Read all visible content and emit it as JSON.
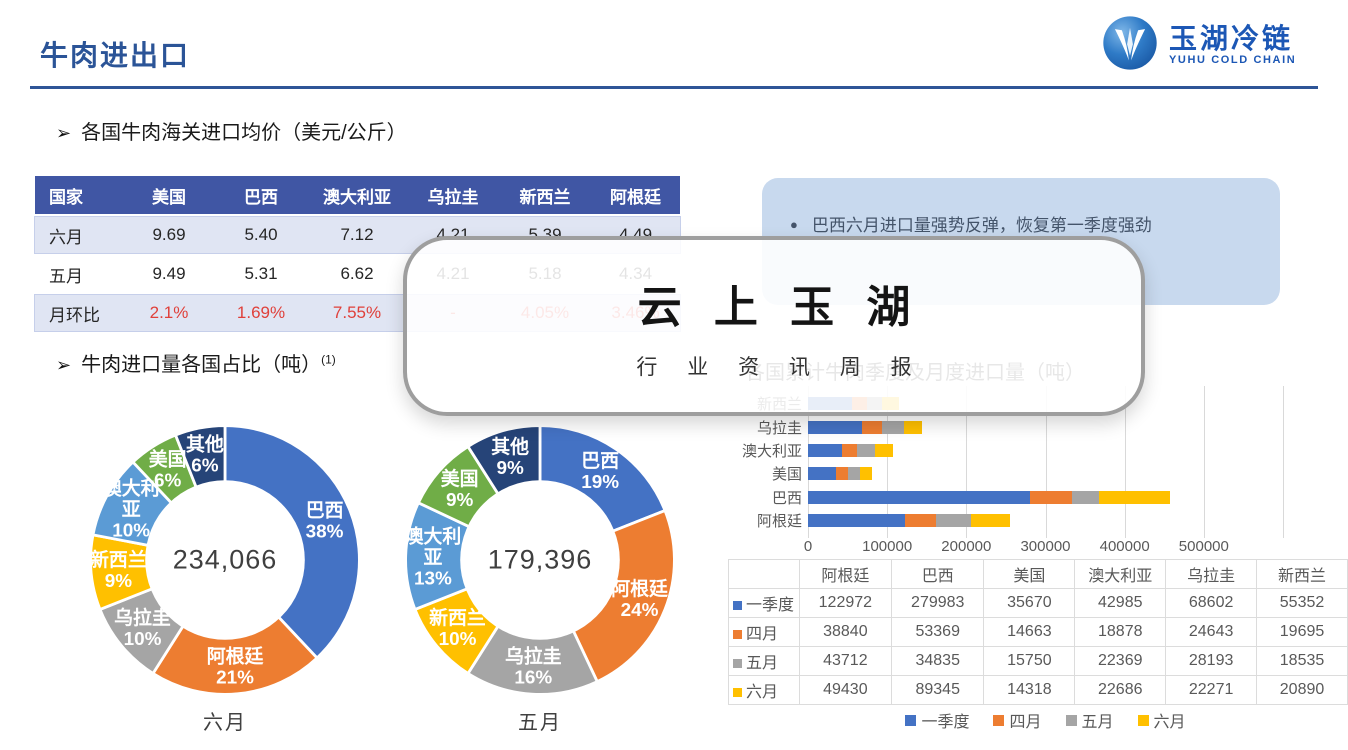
{
  "slide": {
    "title": "牛肉进出口",
    "logo": {
      "cn": "玉湖冷链",
      "en": "YUHU COLD CHAIN"
    },
    "section_price": "各国牛肉海关进口均价（美元/公斤）",
    "section_share": "牛肉进口量各国占比（吨）",
    "section_share_note": "(1)",
    "section_monthly": "各国累计牛肉季度及月度进口量（吨）",
    "callout": "巴西六月进口量强势反弹，恢复第一季度强劲",
    "watermark": {
      "line1": "云 上 玉 湖",
      "line2": "行 业 资 讯 周 报"
    }
  },
  "colors": {
    "accent_blue": "#2E5597",
    "table_header": "#4056A4",
    "band_row": "#E0E5F3",
    "negative_red": "#E0403A",
    "callout_bg": "#C8D9EE"
  },
  "price_table": {
    "headers": [
      "国家",
      "美国",
      "巴西",
      "澳大利亚",
      "乌拉圭",
      "新西兰",
      "阿根廷"
    ],
    "rows": [
      {
        "label": "六月",
        "values": [
          "9.69",
          "5.40",
          "7.12",
          "4.21",
          "5.39",
          "4.49"
        ],
        "band": true,
        "red": false
      },
      {
        "label": "五月",
        "values": [
          "9.49",
          "5.31",
          "6.62",
          "4.21",
          "5.18",
          "4.34"
        ],
        "band": false,
        "red": false
      },
      {
        "label": "月环比",
        "values": [
          "2.1%",
          "1.69%",
          "7.55%",
          "-",
          "4.05%",
          "3.46%"
        ],
        "band": true,
        "red": true
      }
    ]
  },
  "chart_data": [
    {
      "type": "pie",
      "subtype": "donut",
      "title": "六月",
      "center_total": "234,066",
      "slices": [
        {
          "label": "巴西",
          "pct": 38,
          "color": "#4472C4"
        },
        {
          "label": "阿根廷",
          "pct": 21,
          "color": "#ED7D31"
        },
        {
          "label": "乌拉圭",
          "pct": 10,
          "color": "#A5A5A5"
        },
        {
          "label": "新西兰",
          "pct": 9,
          "color": "#FFC000"
        },
        {
          "label": "澳大利亚",
          "pct": 10,
          "color": "#5B9BD5"
        },
        {
          "label": "美国",
          "pct": 6,
          "color": "#70AD47"
        },
        {
          "label": "其他",
          "pct": 6,
          "color": "#264478"
        }
      ]
    },
    {
      "type": "pie",
      "subtype": "donut",
      "title": "五月",
      "center_total": "179,396",
      "slices": [
        {
          "label": "巴西",
          "pct": 19,
          "color": "#4472C4"
        },
        {
          "label": "阿根廷",
          "pct": 24,
          "color": "#ED7D31"
        },
        {
          "label": "乌拉圭",
          "pct": 16,
          "color": "#A5A5A5"
        },
        {
          "label": "新西兰",
          "pct": 10,
          "color": "#FFC000"
        },
        {
          "label": "澳大利亚",
          "pct": 13,
          "color": "#5B9BD5"
        },
        {
          "label": "美国",
          "pct": 9,
          "color": "#70AD47"
        },
        {
          "label": "其他",
          "pct": 9,
          "color": "#264478"
        }
      ]
    },
    {
      "type": "bar",
      "orientation": "horizontal-stacked",
      "title": "各国累计牛肉季度及月度进口量（吨）",
      "categories": [
        "阿根廷",
        "巴西",
        "美国",
        "澳大利亚",
        "乌拉圭",
        "新西兰"
      ],
      "bar_display_order_top_to_bottom": [
        "新西兰",
        "乌拉圭",
        "澳大利亚",
        "美国",
        "巴西",
        "阿根廷"
      ],
      "series": [
        {
          "name": "一季度",
          "color": "#4472C4",
          "values": [
            122972,
            279983,
            35670,
            42985,
            68602,
            55352
          ]
        },
        {
          "name": "四月",
          "color": "#ED7D31",
          "values": [
            38840,
            53369,
            14663,
            18878,
            24643,
            19695
          ]
        },
        {
          "name": "五月",
          "color": "#A5A5A5",
          "values": [
            43712,
            34835,
            15750,
            22369,
            28193,
            18535
          ]
        },
        {
          "name": "六月",
          "color": "#FFC000",
          "values": [
            49430,
            89345,
            14318,
            22686,
            22271,
            20890
          ]
        }
      ],
      "xticks": [
        0,
        100000,
        200000,
        300000,
        400000,
        500000
      ],
      "xmax": 600000,
      "grid": true,
      "legend_position": "bottom"
    }
  ]
}
